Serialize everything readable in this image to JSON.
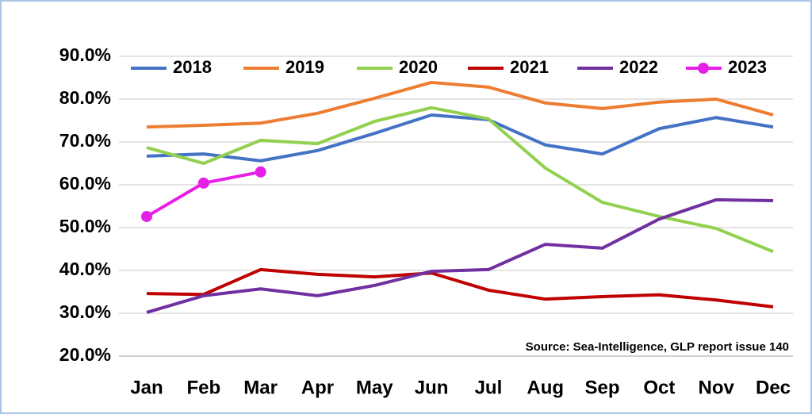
{
  "chart_data": {
    "type": "line",
    "categories": [
      "Jan",
      "Feb",
      "Mar",
      "Apr",
      "May",
      "Jun",
      "Jul",
      "Aug",
      "Sep",
      "Oct",
      "Nov",
      "Dec"
    ],
    "series": [
      {
        "name": "2018",
        "color": "#4472c4",
        "values": [
          66.7,
          67.2,
          65.6,
          68,
          72,
          76.3,
          75.2,
          69.3,
          67.2,
          73.1,
          75.7,
          73.5
        ]
      },
      {
        "name": "2019",
        "color": "#ed7d31",
        "values": [
          73.5,
          73.9,
          74.4,
          76.7,
          80.2,
          83.9,
          82.8,
          79.1,
          77.8,
          79.3,
          80,
          76.3
        ]
      },
      {
        "name": "2020",
        "color": "#92d050",
        "values": [
          68.7,
          65,
          70.4,
          69.6,
          74.8,
          78,
          75.4,
          63.9,
          55.9,
          52.6,
          49.8,
          44.4
        ]
      },
      {
        "name": "2021",
        "color": "#c00000",
        "values": [
          34.6,
          34.4,
          40.2,
          39.1,
          38.5,
          39.4,
          35.4,
          33.3,
          33.9,
          34.3,
          33.1,
          31.5
        ]
      },
      {
        "name": "2022",
        "color": "#7030a0",
        "values": [
          30.2,
          34.1,
          35.7,
          34.1,
          36.5,
          39.8,
          40.2,
          46.1,
          45.2,
          52,
          56.5,
          56.3
        ]
      },
      {
        "name": "2023",
        "color": "#e61ee6",
        "markers": true,
        "values": [
          52.6,
          60.4,
          63,
          null,
          null,
          null,
          null,
          null,
          null,
          null,
          null,
          null
        ]
      }
    ],
    "ylim": [
      20,
      90
    ],
    "yticks": [
      {
        "value": 20,
        "label": "20.0%"
      },
      {
        "value": 30,
        "label": "30.0%"
      },
      {
        "value": 40,
        "label": "40.0%"
      },
      {
        "value": 50,
        "label": "50.0%"
      },
      {
        "value": 60,
        "label": "60.0%"
      },
      {
        "value": 70,
        "label": "70.0%"
      },
      {
        "value": 80,
        "label": "80.0%"
      },
      {
        "value": 90,
        "label": "90.0%"
      }
    ],
    "grid": true,
    "legend": "top",
    "annotation": "Source: Sea-Intelligence, GLP report issue 140"
  }
}
